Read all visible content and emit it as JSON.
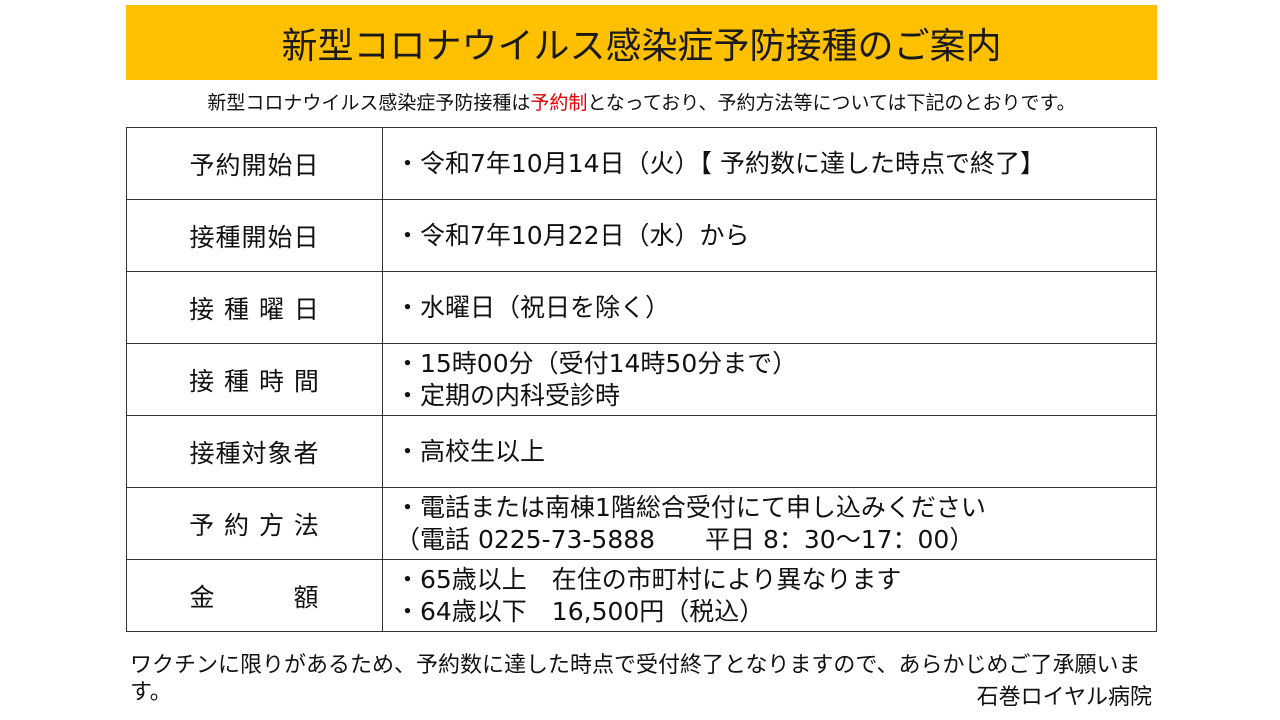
{
  "title": "新型コロナウイルス感染症予防接種のご案内",
  "subtitle": {
    "before": "新型コロナウイルス感染症予防接種は",
    "highlight": "予約制",
    "after": "となっており、予約方法等については下記のとおりです。",
    "highlight_color": "#e00000"
  },
  "rows": [
    {
      "label": "予約開始日",
      "lines": [
        "・令和7年10月14日（火）【 予約数に達した時点で終了】"
      ]
    },
    {
      "label": "接種開始日",
      "lines": [
        "・令和7年10月22日（水）から"
      ]
    },
    {
      "label": "接 種 曜 日",
      "lines": [
        "・水曜日（祝日を除く）"
      ]
    },
    {
      "label": "接 種 時 間",
      "lines": [
        "・15時00分（受付14時50分まで）",
        "・定期の内科受診時"
      ]
    },
    {
      "label": "接種対象者",
      "lines": [
        "・高校生以上"
      ]
    },
    {
      "label": "予 約 方 法",
      "lines": [
        "・電話または南棟1階総合受付にて申し込みください",
        "（電話 0225-73-5888　　平日 8：30〜17：00）"
      ]
    },
    {
      "label": "金　　　額",
      "lines": [
        "・65歳以上　在住の市町村により異なります",
        "・64歳以下　16,500円（税込）"
      ]
    }
  ],
  "footer": "ワクチンに限りがあるため、予約数に達した時点で受付終了となりますので、あらかじめご了承願います。",
  "hospital": "石巻ロイヤル病院",
  "colors": {
    "title_bg": "#FFC000"
  }
}
